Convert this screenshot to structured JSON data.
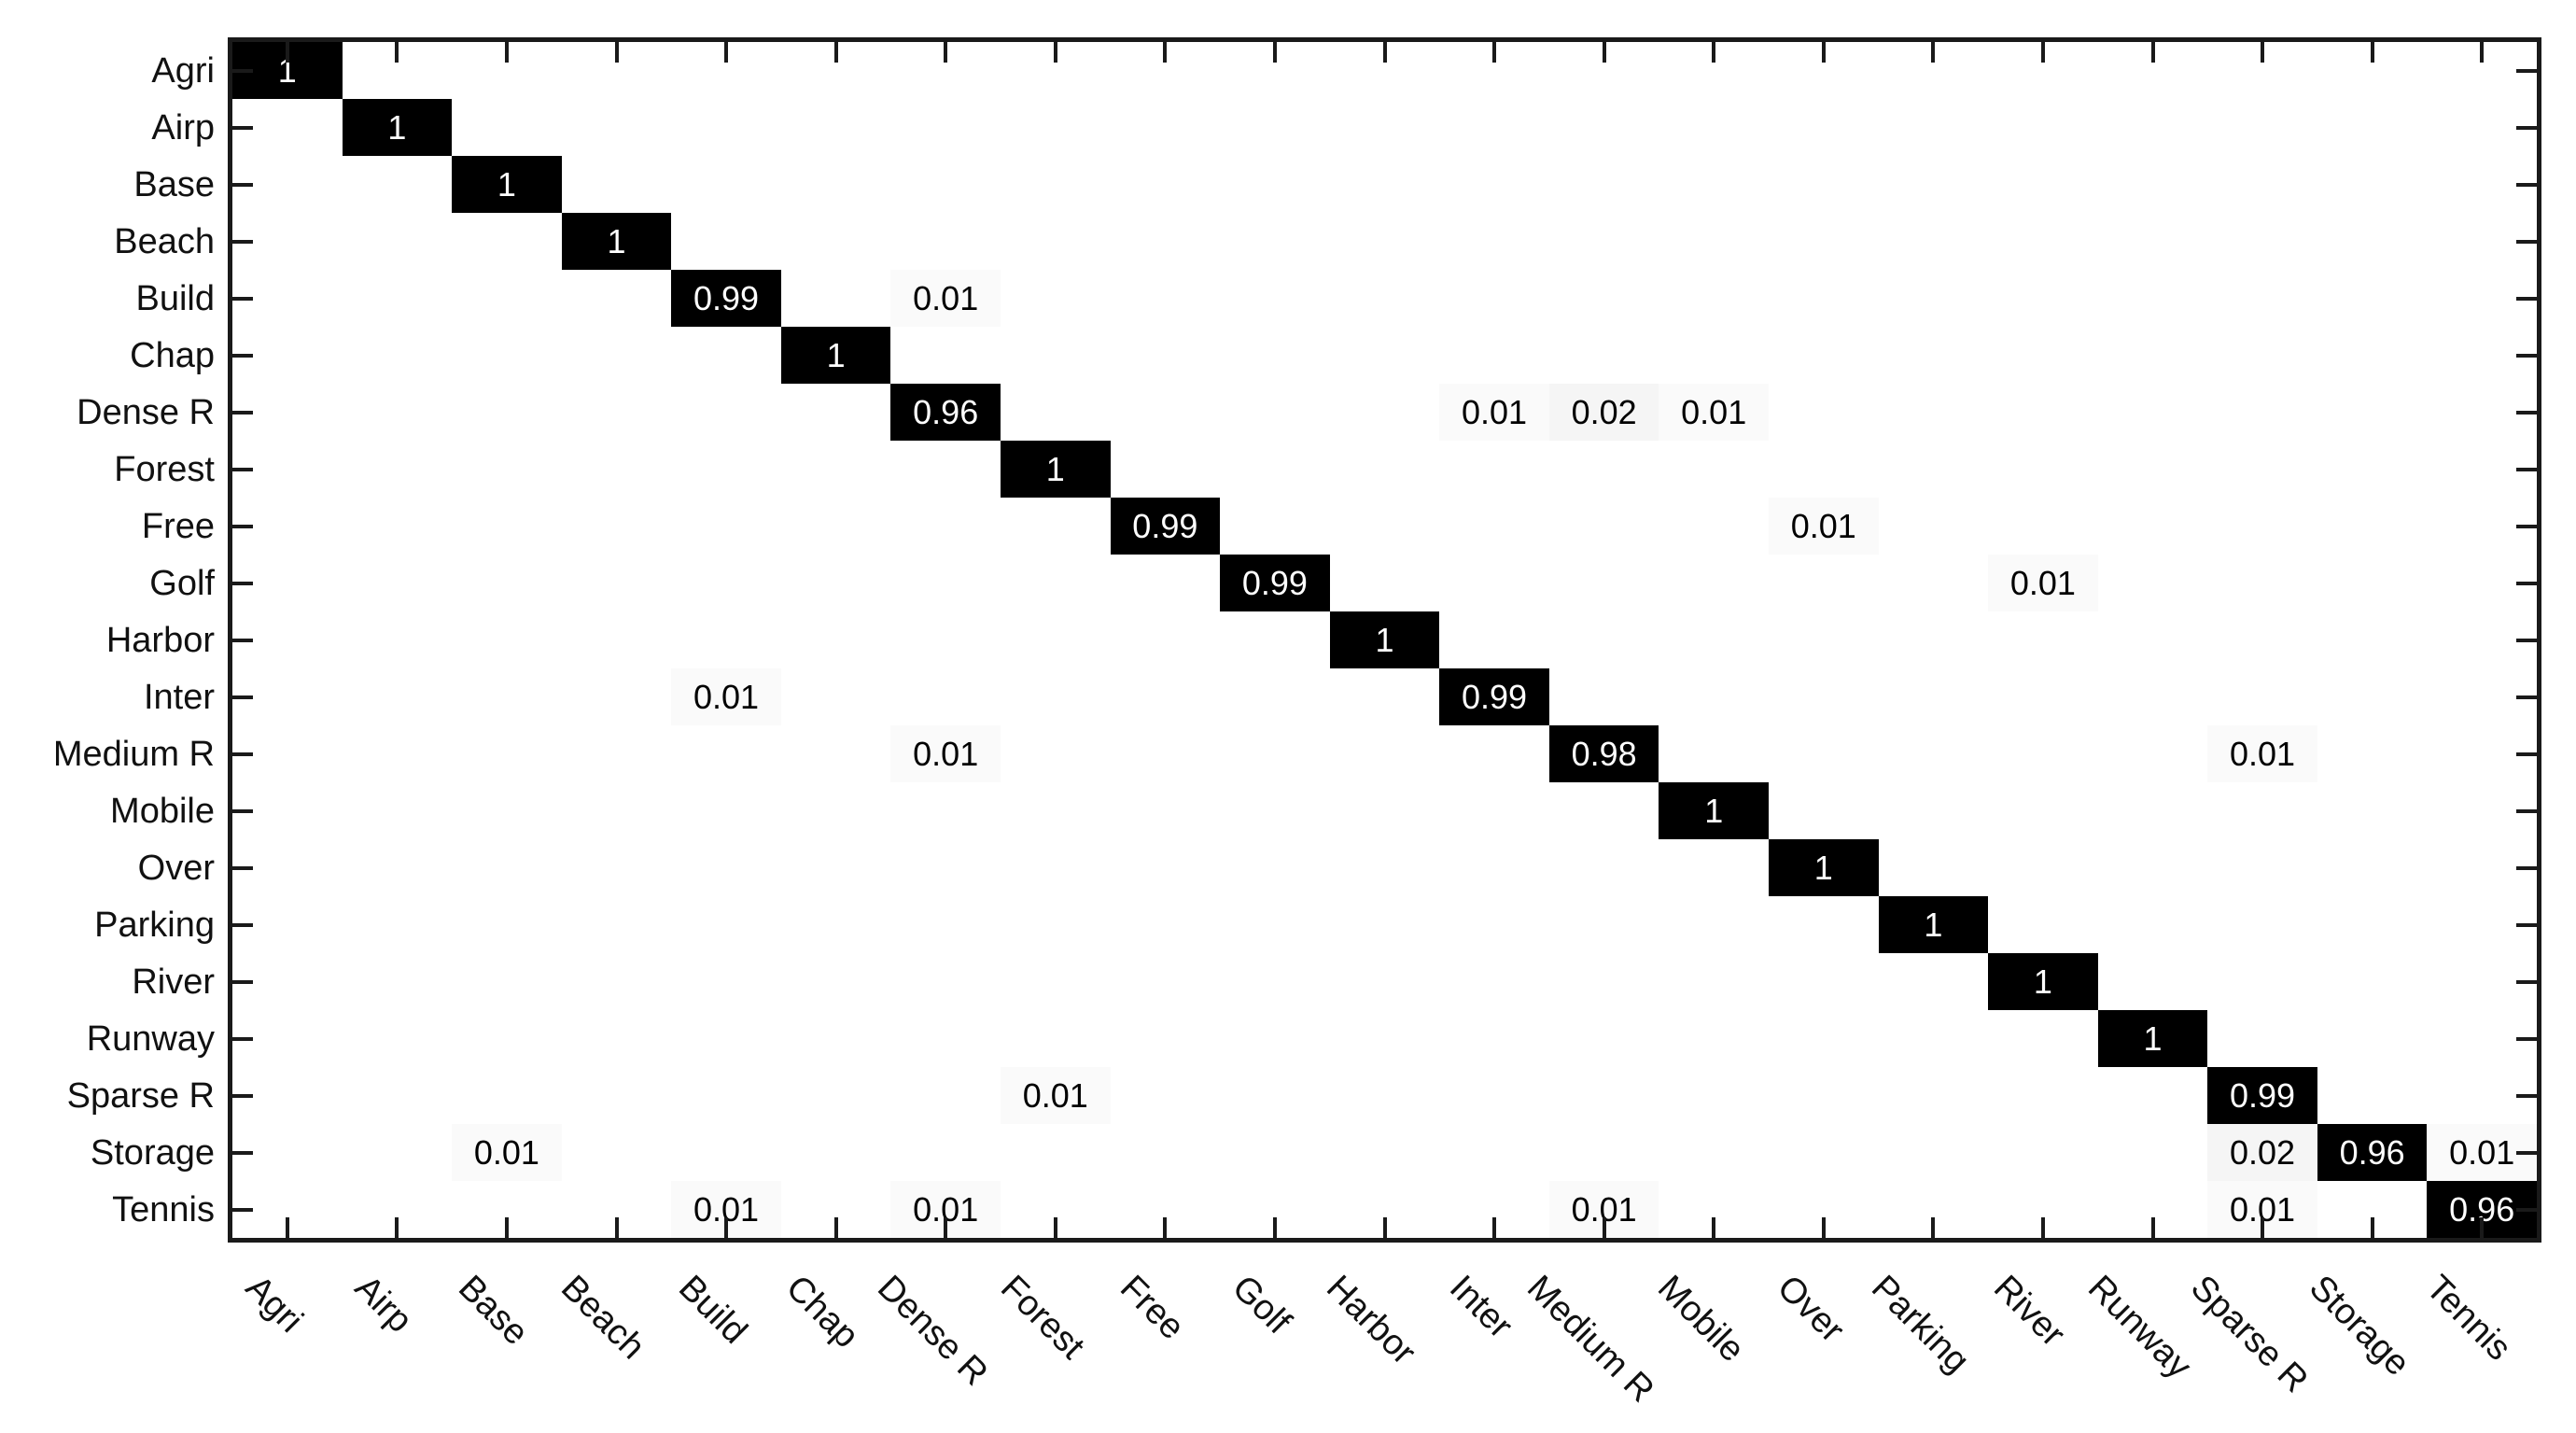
{
  "colors": {
    "background": "#ffffff",
    "axis": "#1a1a1a",
    "label_text": "#111111",
    "cell_high": "#000000",
    "text_on_dark": "#ffffff",
    "text_on_light": "#000000"
  },
  "chart_data": {
    "type": "heatmap",
    "title": "",
    "xlabel": "",
    "ylabel": "",
    "grid": false,
    "legend": "none",
    "value_range": [
      0,
      1
    ],
    "colormap": {
      "low": "#ffffff",
      "high": "#000000"
    },
    "x_tick_rotation_deg": 45,
    "categories_x": [
      "Agri",
      "Airp",
      "Base",
      "Beach",
      "Build",
      "Chap",
      "Dense R",
      "Forest",
      "Free",
      "Golf",
      "Harbor",
      "Inter",
      "Medium R",
      "Mobile",
      "Over",
      "Parking",
      "River",
      "Runway",
      "Sparse R",
      "Storage",
      "Tennis"
    ],
    "categories_y": [
      "Agri",
      "Airp",
      "Base",
      "Beach",
      "Build",
      "Chap",
      "Dense R",
      "Forest",
      "Free",
      "Golf",
      "Harbor",
      "Inter",
      "Medium R",
      "Mobile",
      "Over",
      "Parking",
      "River",
      "Runway",
      "Sparse R",
      "Storage",
      "Tennis"
    ],
    "cells": [
      {
        "row": "Agri",
        "col": "Agri",
        "value": 1,
        "label": "1"
      },
      {
        "row": "Airp",
        "col": "Airp",
        "value": 1,
        "label": "1"
      },
      {
        "row": "Base",
        "col": "Base",
        "value": 1,
        "label": "1"
      },
      {
        "row": "Beach",
        "col": "Beach",
        "value": 1,
        "label": "1"
      },
      {
        "row": "Build",
        "col": "Build",
        "value": 0.99,
        "label": "0.99"
      },
      {
        "row": "Build",
        "col": "Dense R",
        "value": 0.01,
        "label": "0.01"
      },
      {
        "row": "Chap",
        "col": "Chap",
        "value": 1,
        "label": "1"
      },
      {
        "row": "Dense R",
        "col": "Dense R",
        "value": 0.96,
        "label": "0.96"
      },
      {
        "row": "Dense R",
        "col": "Inter",
        "value": 0.01,
        "label": "0.01"
      },
      {
        "row": "Dense R",
        "col": "Medium R",
        "value": 0.02,
        "label": "0.02"
      },
      {
        "row": "Dense R",
        "col": "Mobile",
        "value": 0.01,
        "label": "0.01"
      },
      {
        "row": "Forest",
        "col": "Forest",
        "value": 1,
        "label": "1"
      },
      {
        "row": "Free",
        "col": "Free",
        "value": 0.99,
        "label": "0.99"
      },
      {
        "row": "Free",
        "col": "Over",
        "value": 0.01,
        "label": "0.01"
      },
      {
        "row": "Golf",
        "col": "Golf",
        "value": 0.99,
        "label": "0.99"
      },
      {
        "row": "Golf",
        "col": "River",
        "value": 0.01,
        "label": "0.01"
      },
      {
        "row": "Harbor",
        "col": "Harbor",
        "value": 1,
        "label": "1"
      },
      {
        "row": "Inter",
        "col": "Build",
        "value": 0.01,
        "label": "0.01"
      },
      {
        "row": "Inter",
        "col": "Inter",
        "value": 0.99,
        "label": "0.99"
      },
      {
        "row": "Medium R",
        "col": "Dense R",
        "value": 0.01,
        "label": "0.01"
      },
      {
        "row": "Medium R",
        "col": "Medium R",
        "value": 0.98,
        "label": "0.98"
      },
      {
        "row": "Medium R",
        "col": "Sparse R",
        "value": 0.01,
        "label": "0.01"
      },
      {
        "row": "Mobile",
        "col": "Mobile",
        "value": 1,
        "label": "1"
      },
      {
        "row": "Over",
        "col": "Over",
        "value": 1,
        "label": "1"
      },
      {
        "row": "Parking",
        "col": "Parking",
        "value": 1,
        "label": "1"
      },
      {
        "row": "River",
        "col": "River",
        "value": 1,
        "label": "1"
      },
      {
        "row": "Runway",
        "col": "Runway",
        "value": 1,
        "label": "1"
      },
      {
        "row": "Sparse R",
        "col": "Forest",
        "value": 0.01,
        "label": "0.01"
      },
      {
        "row": "Sparse R",
        "col": "Sparse R",
        "value": 0.99,
        "label": "0.99"
      },
      {
        "row": "Storage",
        "col": "Base",
        "value": 0.01,
        "label": "0.01"
      },
      {
        "row": "Storage",
        "col": "Sparse R",
        "value": 0.02,
        "label": "0.02"
      },
      {
        "row": "Storage",
        "col": "Storage",
        "value": 0.96,
        "label": "0.96"
      },
      {
        "row": "Storage",
        "col": "Tennis",
        "value": 0.01,
        "label": "0.01"
      },
      {
        "row": "Tennis",
        "col": "Build",
        "value": 0.01,
        "label": "0.01"
      },
      {
        "row": "Tennis",
        "col": "Dense R",
        "value": 0.01,
        "label": "0.01"
      },
      {
        "row": "Tennis",
        "col": "Medium R",
        "value": 0.01,
        "label": "0.01"
      },
      {
        "row": "Tennis",
        "col": "Sparse R",
        "value": 0.01,
        "label": "0.01"
      },
      {
        "row": "Tennis",
        "col": "Tennis",
        "value": 0.96,
        "label": "0.96"
      }
    ]
  }
}
